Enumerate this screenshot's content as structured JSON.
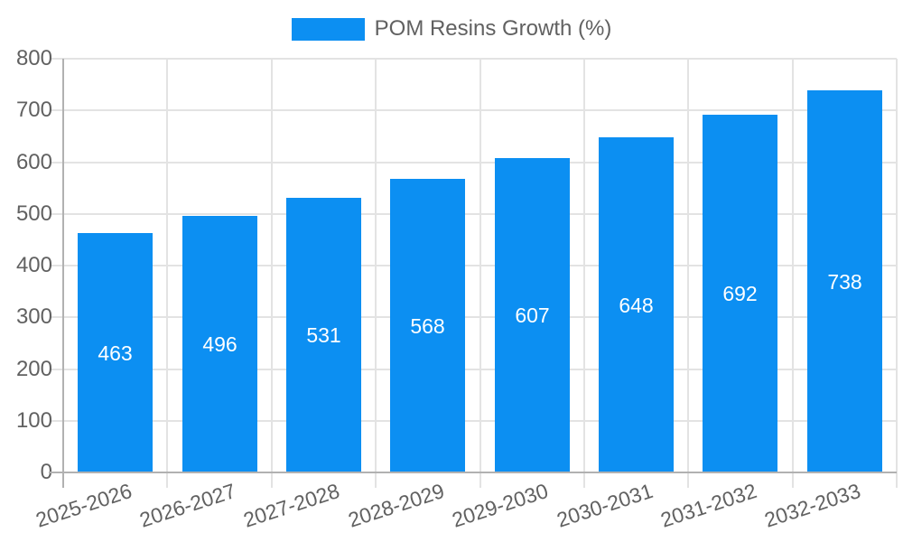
{
  "legend": {
    "items": [
      {
        "label": "POM Resins Growth (%)",
        "color": "#0c8ff2"
      }
    ]
  },
  "chart_data": {
    "type": "bar",
    "title": "POM Resins Growth (%)",
    "categories": [
      "2025-2026",
      "2026-2027",
      "2027-2028",
      "2028-2029",
      "2029-2030",
      "2030-2031",
      "2031-2032",
      "2032-2033"
    ],
    "values": [
      463,
      496,
      531,
      568,
      607,
      648,
      692,
      738
    ],
    "series": [
      {
        "name": "POM Resins Growth (%)",
        "values": [
          463,
          496,
          531,
          568,
          607,
          648,
          692,
          738
        ]
      }
    ],
    "xlabel": "",
    "ylabel": "",
    "ylim": [
      0,
      800
    ],
    "yticks": [
      0,
      100,
      200,
      300,
      400,
      500,
      600,
      700,
      800
    ],
    "grid": true,
    "legend_position": "top",
    "bar_color": "#0c8ff2",
    "value_label_color": "#ffffff",
    "show_value_labels": true
  },
  "colors": {
    "background": "#ffffff",
    "grid": "#e3e3e3",
    "axis": "#b1b1b1",
    "tick_label": "#616161",
    "legend_text": "#616161"
  }
}
